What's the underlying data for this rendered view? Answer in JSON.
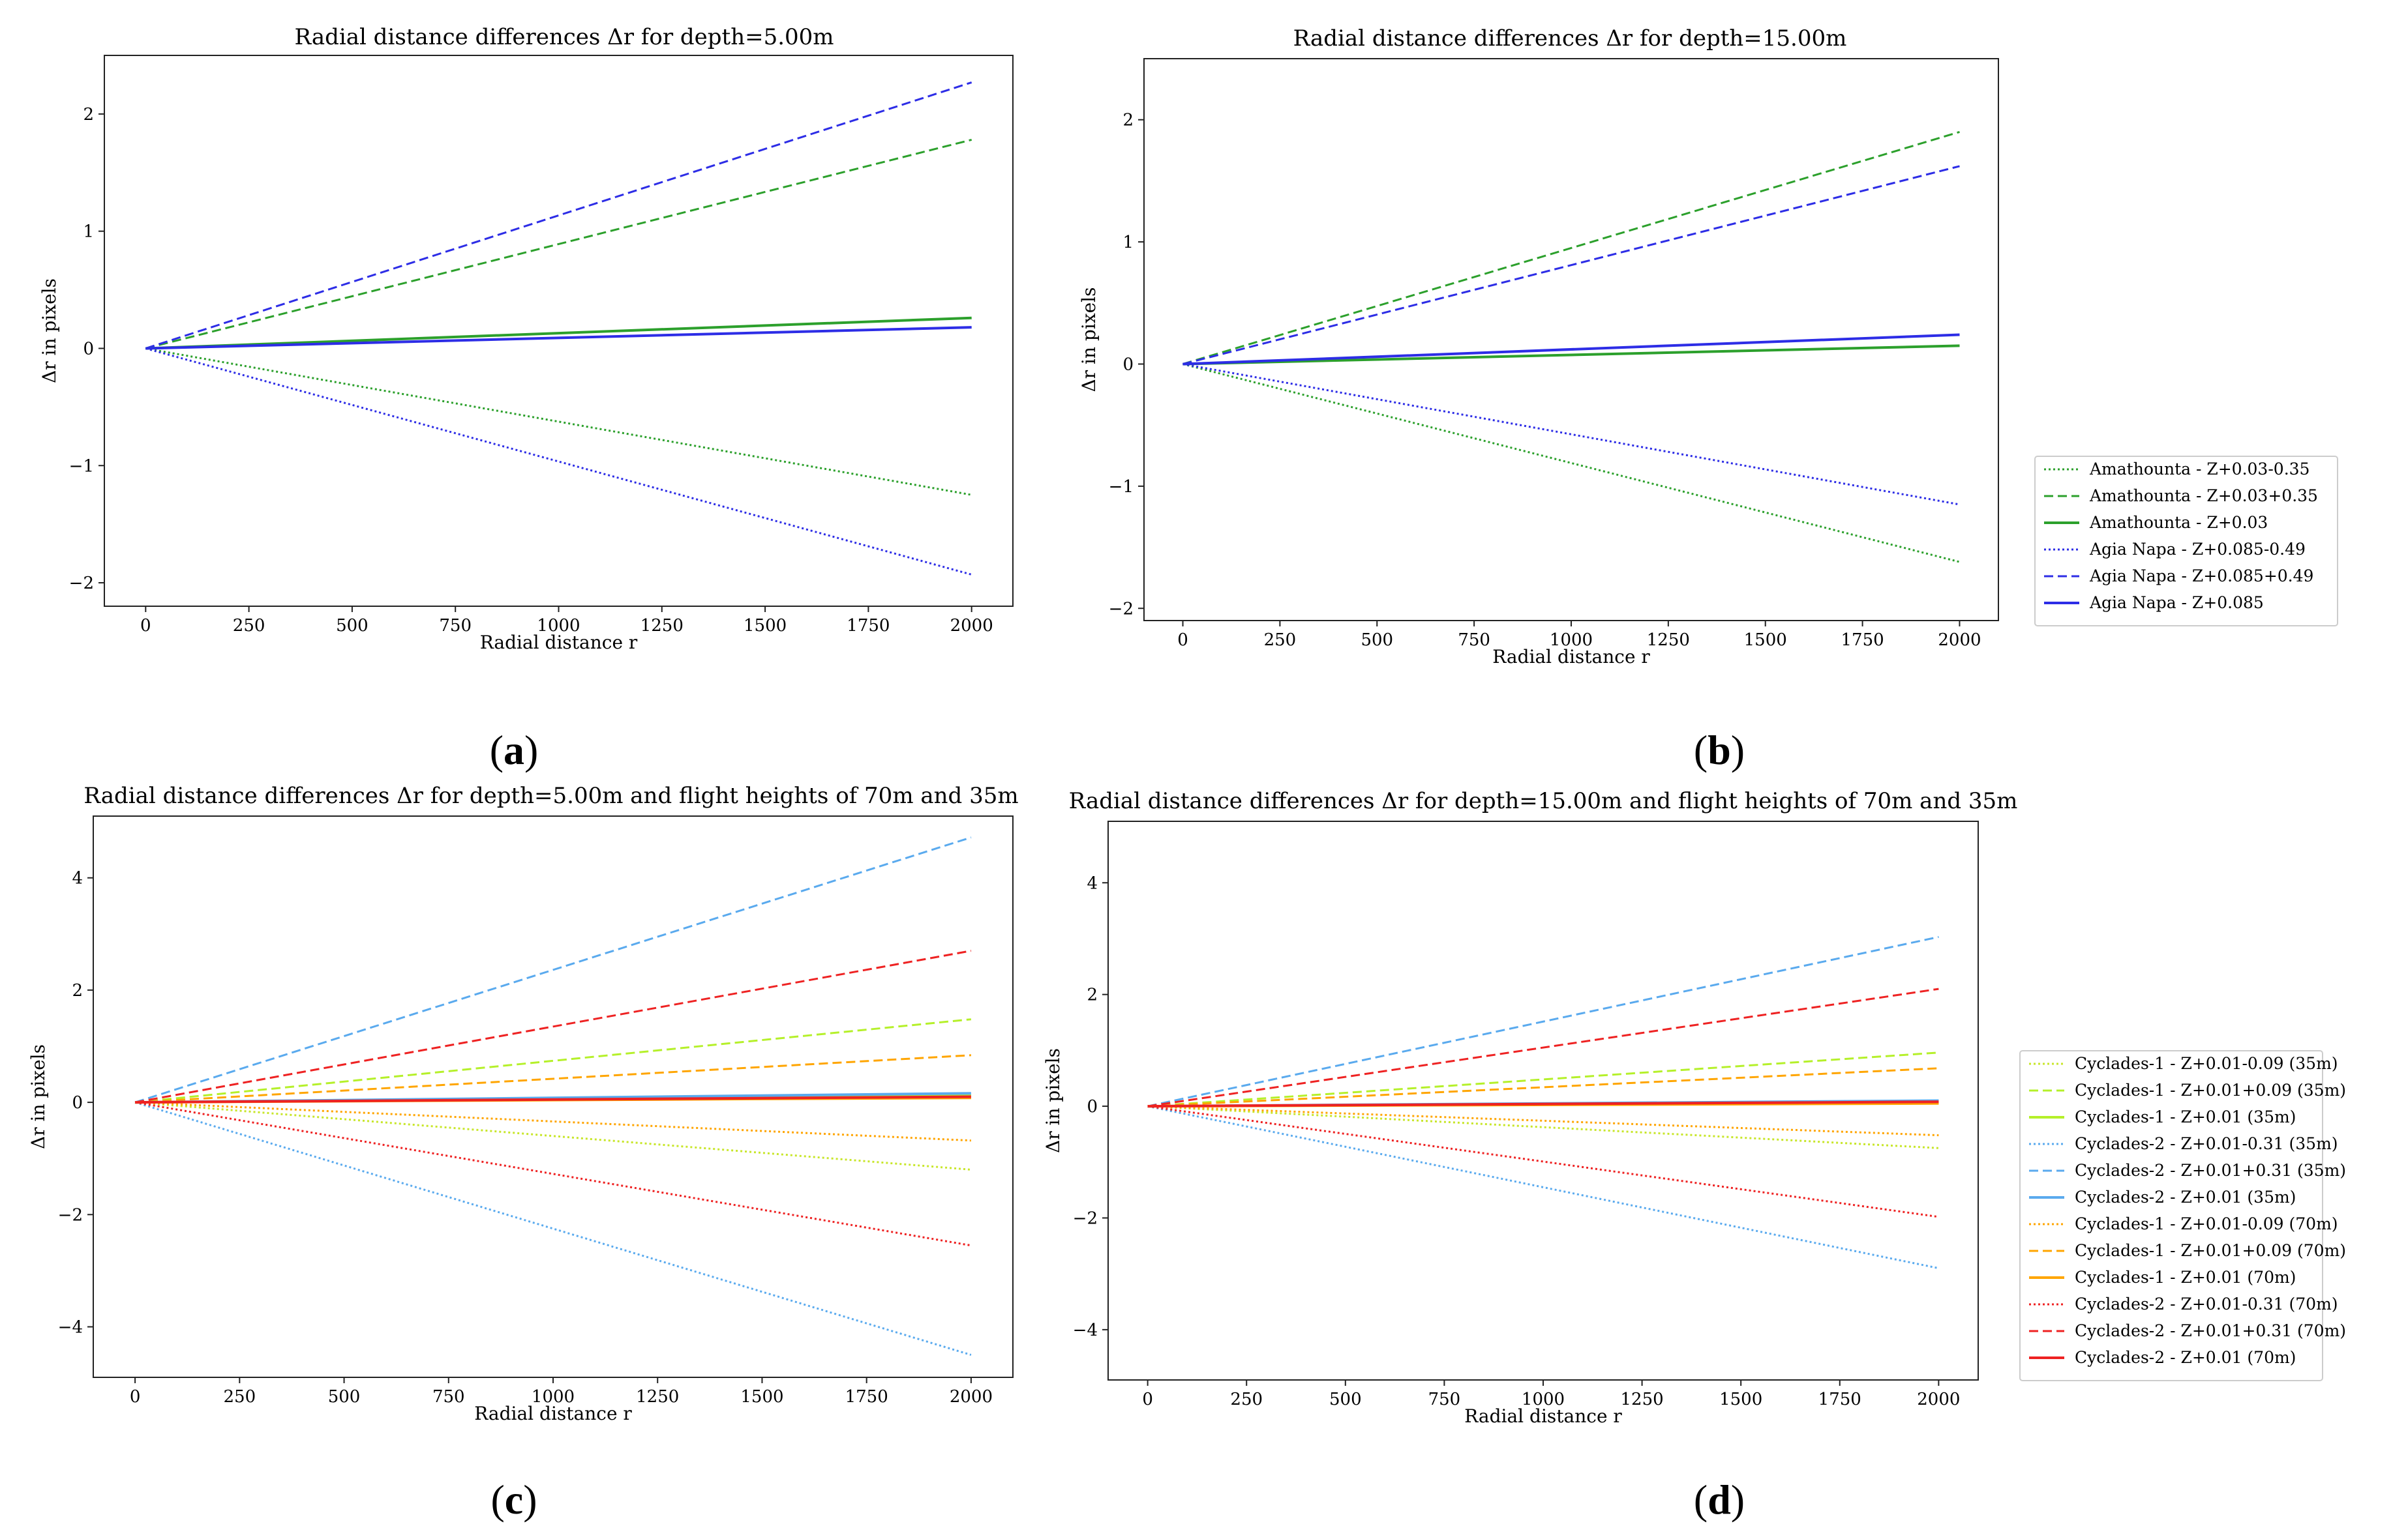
{
  "chart_data": [
    {
      "type": "line",
      "panel": "a",
      "title": "Radial distance differences Δr for depth=5.00m",
      "xlabel": "Radial distance r",
      "ylabel": "Δr in pixels",
      "xlim": [
        -100,
        2100
      ],
      "ylim": [
        -2.2,
        2.5
      ],
      "xticks": [
        0,
        250,
        500,
        750,
        1000,
        1250,
        1500,
        1750,
        2000
      ],
      "yticks": [
        -2,
        -1,
        0,
        1,
        2
      ],
      "legend": false,
      "series": [
        {
          "name": "Amathounta  - Z+0.03-0.35",
          "color": "#2ca02c",
          "dash": "dotted",
          "x": [
            0,
            2000
          ],
          "values": [
            0,
            -1.25
          ]
        },
        {
          "name": "Amathounta  - Z+0.03+0.35",
          "color": "#2ca02c",
          "dash": "dashed",
          "x": [
            0,
            2000
          ],
          "values": [
            0,
            1.78
          ]
        },
        {
          "name": "Amathounta - Z+0.03",
          "color": "#2ca02c",
          "dash": "solid",
          "x": [
            0,
            2000
          ],
          "values": [
            0,
            0.26
          ]
        },
        {
          "name": "Agia Napa - Z+0.085-0.49",
          "color": "#2d2de6",
          "dash": "dotted",
          "x": [
            0,
            2000
          ],
          "values": [
            0,
            -1.93
          ]
        },
        {
          "name": "Agia Napa - Z+0.085+0.49",
          "color": "#2d2de6",
          "dash": "dashed",
          "x": [
            0,
            2000
          ],
          "values": [
            0,
            2.27
          ]
        },
        {
          "name": "Agia Napa - Z+0.085",
          "color": "#2d2de6",
          "dash": "solid",
          "x": [
            0,
            2000
          ],
          "values": [
            0,
            0.18
          ]
        }
      ]
    },
    {
      "type": "line",
      "panel": "b",
      "title": "Radial distance differences Δr for depth=15.00m",
      "xlabel": "Radial distance r",
      "ylabel": "Δr in pixels",
      "xlim": [
        -100,
        2100
      ],
      "ylim": [
        -2.1,
        2.5
      ],
      "xticks": [
        0,
        250,
        500,
        750,
        1000,
        1250,
        1500,
        1750,
        2000
      ],
      "yticks": [
        -2,
        -1,
        0,
        1,
        2
      ],
      "legend": true,
      "series": [
        {
          "name": "Amathounta  - Z+0.03-0.35",
          "color": "#2ca02c",
          "dash": "dotted",
          "x": [
            0,
            2000
          ],
          "values": [
            0,
            -1.62
          ]
        },
        {
          "name": "Amathounta  - Z+0.03+0.35",
          "color": "#2ca02c",
          "dash": "dashed",
          "x": [
            0,
            2000
          ],
          "values": [
            0,
            1.9
          ]
        },
        {
          "name": "Amathounta - Z+0.03",
          "color": "#2ca02c",
          "dash": "solid",
          "x": [
            0,
            2000
          ],
          "values": [
            0,
            0.15
          ]
        },
        {
          "name": "Agia Napa - Z+0.085-0.49",
          "color": "#2d2de6",
          "dash": "dotted",
          "x": [
            0,
            2000
          ],
          "values": [
            0,
            -1.15
          ]
        },
        {
          "name": "Agia Napa - Z+0.085+0.49",
          "color": "#2d2de6",
          "dash": "dashed",
          "x": [
            0,
            2000
          ],
          "values": [
            0,
            1.62
          ]
        },
        {
          "name": "Agia Napa - Z+0.085",
          "color": "#2d2de6",
          "dash": "solid",
          "x": [
            0,
            2000
          ],
          "values": [
            0,
            0.24
          ]
        }
      ]
    },
    {
      "type": "line",
      "panel": "c",
      "title": "Radial distance differences Δr for depth=5.00m and flight heights of 70m and 35m",
      "xlabel": "Radial distance r",
      "ylabel": "Δr in pixels",
      "xlim": [
        -100,
        2100
      ],
      "ylim": [
        -4.9,
        5.1
      ],
      "xticks": [
        0,
        250,
        500,
        750,
        1000,
        1250,
        1500,
        1750,
        2000
      ],
      "yticks": [
        -4,
        -2,
        0,
        2,
        4
      ],
      "legend": false,
      "series": [
        {
          "name": "Cyclades-1 - Z+0.01-0.09 (35m)",
          "color": "#c8e62a",
          "dash": "dotted",
          "x": [
            0,
            2000
          ],
          "values": [
            0,
            -1.2
          ]
        },
        {
          "name": "Cyclades-1 - Z+0.01+0.09 (35m)",
          "color": "#b5f02a",
          "dash": "dashed",
          "x": [
            0,
            2000
          ],
          "values": [
            0,
            1.48
          ]
        },
        {
          "name": "Cyclades-1 - Z+0.01 (35m)",
          "color": "#b5f02a",
          "dash": "solid",
          "x": [
            0,
            2000
          ],
          "values": [
            0,
            0.12
          ]
        },
        {
          "name": "Cyclades-2 - Z+0.01-0.31 (35m)",
          "color": "#5aaaee",
          "dash": "dotted",
          "x": [
            0,
            2000
          ],
          "values": [
            0,
            -4.5
          ]
        },
        {
          "name": "Cyclades-2 - Z+0.01+0.31 (35m)",
          "color": "#5aaaee",
          "dash": "dashed",
          "x": [
            0,
            2000
          ],
          "values": [
            0,
            4.72
          ]
        },
        {
          "name": "Cyclades-2 - Z+0.01 (35m)",
          "color": "#5aaaee",
          "dash": "solid",
          "x": [
            0,
            2000
          ],
          "values": [
            0,
            0.16
          ]
        },
        {
          "name": "Cyclades-1 - Z+0.01-0.09 (70m)",
          "color": "#ffa500",
          "dash": "dotted",
          "x": [
            0,
            2000
          ],
          "values": [
            0,
            -0.68
          ]
        },
        {
          "name": "Cyclades-1 - Z+0.01+0.09 (70m)",
          "color": "#ffa500",
          "dash": "dashed",
          "x": [
            0,
            2000
          ],
          "values": [
            0,
            0.84
          ]
        },
        {
          "name": "Cyclades-1 - Z+0.01 (70m)",
          "color": "#ffa500",
          "dash": "solid",
          "x": [
            0,
            2000
          ],
          "values": [
            0,
            0.08
          ]
        },
        {
          "name": "Cyclades-2 - Z+0.01-0.31 (70m)",
          "color": "#ee2222",
          "dash": "dotted",
          "x": [
            0,
            2000
          ],
          "values": [
            0,
            -2.55
          ]
        },
        {
          "name": "Cyclades-2 - Z+0.01+0.31 (70m)",
          "color": "#ee2222",
          "dash": "dashed",
          "x": [
            0,
            2000
          ],
          "values": [
            0,
            2.7
          ]
        },
        {
          "name": "Cyclades-2 - Z+0.01 (70m)",
          "color": "#ee2222",
          "dash": "solid",
          "x": [
            0,
            2000
          ],
          "values": [
            0,
            0.1
          ]
        }
      ]
    },
    {
      "type": "line",
      "panel": "d",
      "title": "Radial distance differences Δr for depth=15.00m and flight heights of 70m and 35m",
      "xlabel": "Radial distance r",
      "ylabel": "Δr in pixels",
      "xlim": [
        -100,
        2100
      ],
      "ylim": [
        -4.9,
        5.1
      ],
      "xticks": [
        0,
        250,
        500,
        750,
        1000,
        1250,
        1500,
        1750,
        2000
      ],
      "yticks": [
        -4,
        -2,
        0,
        2,
        4
      ],
      "legend": true,
      "series": [
        {
          "name": "Cyclades-1 - Z+0.01-0.09 (35m)",
          "color": "#c8e62a",
          "dash": "dotted",
          "x": [
            0,
            2000
          ],
          "values": [
            0,
            -0.75
          ]
        },
        {
          "name": "Cyclades-1 - Z+0.01+0.09 (35m)",
          "color": "#b5f02a",
          "dash": "dashed",
          "x": [
            0,
            2000
          ],
          "values": [
            0,
            0.96
          ]
        },
        {
          "name": "Cyclades-1 - Z+0.01 (35m)",
          "color": "#b5f02a",
          "dash": "solid",
          "x": [
            0,
            2000
          ],
          "values": [
            0,
            0.06
          ]
        },
        {
          "name": "Cyclades-2 - Z+0.01-0.31 (35m)",
          "color": "#5aaaee",
          "dash": "dotted",
          "x": [
            0,
            2000
          ],
          "values": [
            0,
            -2.9
          ]
        },
        {
          "name": "Cyclades-2 - Z+0.01+0.31 (35m)",
          "color": "#5aaaee",
          "dash": "dashed",
          "x": [
            0,
            2000
          ],
          "values": [
            0,
            3.03
          ]
        },
        {
          "name": "Cyclades-2 - Z+0.01 (35m)",
          "color": "#5aaaee",
          "dash": "solid",
          "x": [
            0,
            2000
          ],
          "values": [
            0,
            0.1
          ]
        },
        {
          "name": "Cyclades-1 - Z+0.01-0.09 (70m)",
          "color": "#ffa500",
          "dash": "dotted",
          "x": [
            0,
            2000
          ],
          "values": [
            0,
            -0.52
          ]
        },
        {
          "name": "Cyclades-1 - Z+0.01+0.09 (70m)",
          "color": "#ffa500",
          "dash": "dashed",
          "x": [
            0,
            2000
          ],
          "values": [
            0,
            0.68
          ]
        },
        {
          "name": "Cyclades-1 - Z+0.01 (70m)",
          "color": "#ffa500",
          "dash": "solid",
          "x": [
            0,
            2000
          ],
          "values": [
            0,
            0.05
          ]
        },
        {
          "name": "Cyclades-2 - Z+0.01-0.31 (70m)",
          "color": "#ee2222",
          "dash": "dotted",
          "x": [
            0,
            2000
          ],
          "values": [
            0,
            -1.98
          ]
        },
        {
          "name": "Cyclades-2 - Z+0.01+0.31 (70m)",
          "color": "#ee2222",
          "dash": "dashed",
          "x": [
            0,
            2000
          ],
          "values": [
            0,
            2.1
          ]
        },
        {
          "name": "Cyclades-2 - Z+0.01 (70m)",
          "color": "#ee2222",
          "dash": "solid",
          "x": [
            0,
            2000
          ],
          "values": [
            0,
            0.08
          ]
        }
      ]
    }
  ],
  "panel_labels": {
    "a": {
      "open": "(",
      "letter": "a",
      "close": ")"
    },
    "b": {
      "open": "(",
      "letter": "b",
      "close": ")"
    },
    "c": {
      "open": "(",
      "letter": "c",
      "close": ")"
    },
    "d": {
      "open": "(",
      "letter": "d",
      "close": ")"
    }
  }
}
